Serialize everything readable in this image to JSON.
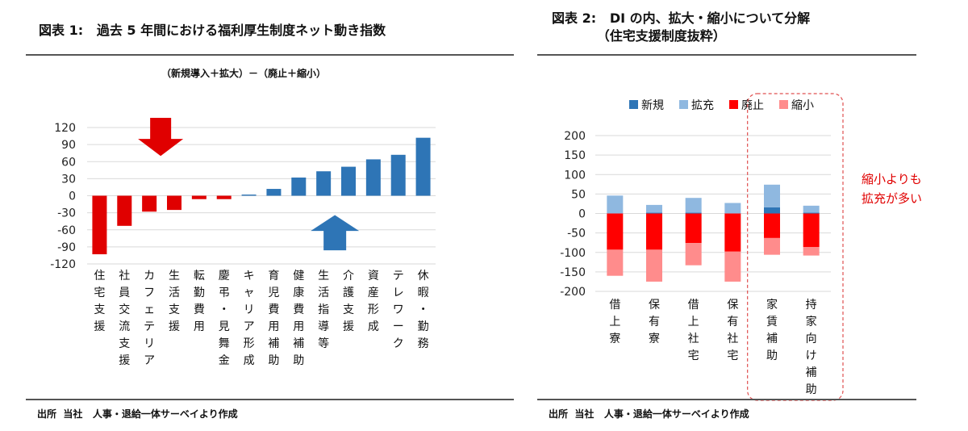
{
  "left": {
    "title": "図表 1:   過去 5 年間における福利厚生制度ネット動き指数",
    "source": "出所  当社   人事・退給一体サーベイより作成",
    "chart_data": {
      "type": "bar",
      "subtitle": "（新規導入＋拡大）－（廃止＋縮小）",
      "categories": [
        "住宅支援",
        "社員交流支援",
        "カフェテリア",
        "生活支援",
        "転勤費用",
        "慶弔・見舞金",
        "キャリア形成",
        "育児費用補助",
        "健康費用補助",
        "生活指導等",
        "介護支援",
        "資産形成",
        "テレワーク",
        "休暇・勤務"
      ],
      "values": [
        -103,
        -53,
        -28,
        -25,
        -6,
        -6,
        2,
        12,
        32,
        43,
        51,
        64,
        72,
        102
      ],
      "ylim": [
        -120,
        120
      ],
      "yticks": [
        120,
        90,
        60,
        30,
        0,
        -30,
        -60,
        -90,
        -120
      ],
      "negative_color": "#e00000",
      "positive_color": "#2e75b6",
      "grid": true,
      "annotations": [
        {
          "type": "arrow-down",
          "color": "#e00000"
        },
        {
          "type": "arrow-up",
          "color": "#2e75b6"
        }
      ]
    }
  },
  "right": {
    "title": "図表 2:   DI の内、拡大・縮小について分解\n          （住宅支援制度抜粋）",
    "source": "出所  当社   人事・退給一体サーベイより作成",
    "callout": [
      "縮小よりも",
      "拡充が多い"
    ],
    "chart_data": {
      "type": "bar",
      "stacked": true,
      "categories": [
        "借上寮",
        "保有寮",
        "借上社宅",
        "保有社宅",
        "家賃補助",
        "持家向け補助"
      ],
      "series": [
        {
          "name": "新規",
          "color": "#2e75b6",
          "values": [
            0,
            2,
            2,
            0,
            16,
            2
          ]
        },
        {
          "name": "拡充",
          "color": "#8fb8e0",
          "values": [
            46,
            20,
            38,
            27,
            58,
            18
          ]
        },
        {
          "name": "廃止",
          "color": "#ff0000",
          "values": [
            -93,
            -93,
            -76,
            -98,
            -63,
            -86
          ]
        },
        {
          "name": "縮小",
          "color": "#ff8c8c",
          "values": [
            -67,
            -82,
            -57,
            -77,
            -43,
            -22
          ]
        }
      ],
      "ylim": [
        -200,
        200
      ],
      "yticks": [
        200,
        150,
        100,
        50,
        0,
        -50,
        -100,
        -150,
        -200
      ],
      "legend": "top",
      "grid": true,
      "highlight": "家賃補助・持家向け補助"
    }
  }
}
